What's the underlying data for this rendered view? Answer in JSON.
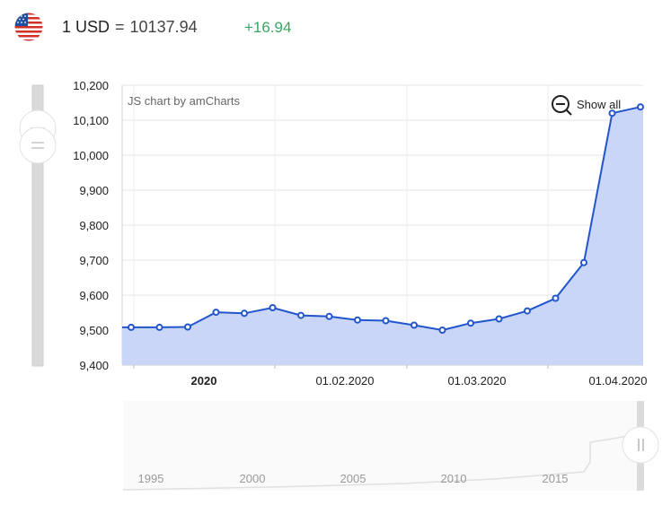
{
  "header": {
    "base": "1 USD",
    "equals": "=",
    "rate": "10137.94",
    "change": "+16.94"
  },
  "credit": "JS chart by amCharts",
  "show_all_label": "Show all",
  "colors": {
    "line": "#2255cc",
    "fill": "#c9d6f7",
    "change_positive": "#3aa564",
    "grid": "#e6e6e6"
  },
  "icons": [
    "us-flag-icon",
    "zoom-out-icon",
    "slider-handle-icon"
  ],
  "chart_data": {
    "type": "area",
    "title": "",
    "xlabel": "",
    "ylabel": "",
    "ylim": [
      9400,
      10200
    ],
    "yticks": [
      "9,400",
      "9,500",
      "9,600",
      "9,700",
      "9,800",
      "9,900",
      "10,000",
      "10,100",
      "10,200"
    ],
    "xticks": [
      "2020",
      "01.02.2020",
      "01.03.2020",
      "01.04.2020"
    ],
    "grid": true,
    "points": [
      9508,
      9508,
      9509,
      9551,
      9548,
      9564,
      9542,
      9539,
      9529,
      9527,
      9514,
      9500,
      9520,
      9532,
      9555,
      9591,
      9693,
      10120,
      10138
    ],
    "navigator": {
      "labels": [
        "1995",
        "2000",
        "2005",
        "2010",
        "2015"
      ]
    }
  }
}
